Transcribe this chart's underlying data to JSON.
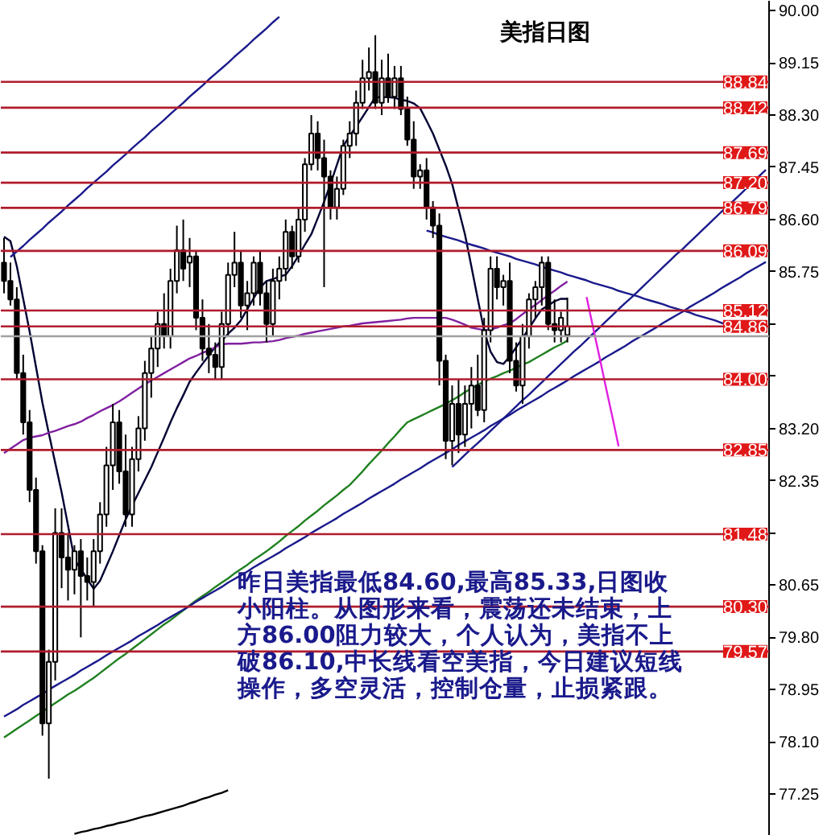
{
  "chart_data": {
    "type": "candlestick",
    "title": "美指日图",
    "categories": [
      null,
      null,
      null,
      null,
      null,
      null,
      null,
      null,
      null,
      null,
      null,
      null,
      null,
      null,
      null,
      null,
      null,
      null,
      null,
      null,
      null,
      null,
      null,
      null,
      null,
      null,
      null,
      null,
      null,
      null,
      null,
      null,
      null,
      null,
      null,
      null,
      null,
      null,
      null,
      null,
      null,
      null,
      null,
      null,
      null,
      null,
      null,
      null,
      null,
      null,
      null,
      null,
      null,
      null,
      null,
      null,
      null,
      null,
      null,
      null,
      null,
      null,
      null,
      null,
      null,
      null,
      null,
      null,
      null,
      null,
      null,
      null,
      null,
      null,
      null,
      null,
      null,
      null,
      null,
      null,
      null,
      null,
      null,
      null,
      null,
      null,
      null,
      null,
      null,
      null,
      null,
      null,
      null,
      null,
      null,
      null,
      null,
      null,
      null,
      null,
      null,
      null,
      null,
      null,
      null,
      null,
      null,
      null,
      null,
      null,
      null,
      null,
      null,
      null,
      null,
      null,
      null,
      null,
      null,
      null
    ],
    "ohlc": [
      [
        85.9,
        86.3,
        85.4,
        85.6
      ],
      [
        85.6,
        85.9,
        85.2,
        85.3
      ],
      [
        85.3,
        85.5,
        84.0,
        84.1
      ],
      [
        84.1,
        84.4,
        83.1,
        83.3
      ],
      [
        83.3,
        83.5,
        82.0,
        82.2
      ],
      [
        82.2,
        82.4,
        81.0,
        81.2
      ],
      [
        81.2,
        81.3,
        78.2,
        78.4
      ],
      [
        78.4,
        79.6,
        77.5,
        79.4
      ],
      [
        79.4,
        81.9,
        79.1,
        81.5
      ],
      [
        81.5,
        81.9,
        80.6,
        81.1
      ],
      [
        81.1,
        81.5,
        80.4,
        80.9
      ],
      [
        80.9,
        81.3,
        80.5,
        81.2
      ],
      [
        81.2,
        81.4,
        79.8,
        80.8
      ],
      [
        80.8,
        81.1,
        80.4,
        80.7
      ],
      [
        80.7,
        81.4,
        80.3,
        81.2
      ],
      [
        81.2,
        82.0,
        81.0,
        81.8
      ],
      [
        81.8,
        82.9,
        81.6,
        82.6
      ],
      [
        82.6,
        83.6,
        82.2,
        83.3
      ],
      [
        83.3,
        83.5,
        82.3,
        82.5
      ],
      [
        82.5,
        83.1,
        81.6,
        81.8
      ],
      [
        81.8,
        82.9,
        81.6,
        82.7
      ],
      [
        82.7,
        83.4,
        82.5,
        83.2
      ],
      [
        83.2,
        84.3,
        83.0,
        84.1
      ],
      [
        84.1,
        84.7,
        83.7,
        84.5
      ],
      [
        84.5,
        85.1,
        84.2,
        84.9
      ],
      [
        84.9,
        85.4,
        84.5,
        84.7
      ],
      [
        84.7,
        85.8,
        84.5,
        85.6
      ],
      [
        85.6,
        86.5,
        85.4,
        86.1
      ],
      [
        86.1,
        86.6,
        85.6,
        85.8
      ],
      [
        85.9,
        86.3,
        85.5,
        86.0
      ],
      [
        86.0,
        86.1,
        84.8,
        85.0
      ],
      [
        85.0,
        85.3,
        84.3,
        84.5
      ],
      [
        84.5,
        84.9,
        84.1,
        84.4
      ],
      [
        84.4,
        84.6,
        84.0,
        84.2
      ],
      [
        84.2,
        85.1,
        84.0,
        84.9
      ],
      [
        84.9,
        85.9,
        84.7,
        85.7
      ],
      [
        85.7,
        86.4,
        85.5,
        85.9
      ],
      [
        85.9,
        86.1,
        85.0,
        85.2
      ],
      [
        85.2,
        85.6,
        84.8,
        85.4
      ],
      [
        85.4,
        86.0,
        85.2,
        85.9
      ],
      [
        85.9,
        86.1,
        85.2,
        85.4
      ],
      [
        85.4,
        85.6,
        84.6,
        84.9
      ],
      [
        84.9,
        85.8,
        84.7,
        85.6
      ],
      [
        85.6,
        86.0,
        85.3,
        85.8
      ],
      [
        85.8,
        86.6,
        85.6,
        86.4
      ],
      [
        86.4,
        86.5,
        85.8,
        86.0
      ],
      [
        86.0,
        86.8,
        85.9,
        86.6
      ],
      [
        86.6,
        87.6,
        86.4,
        87.5
      ],
      [
        87.5,
        88.3,
        87.4,
        88.0
      ],
      [
        88.0,
        88.2,
        87.4,
        87.6
      ],
      [
        87.6,
        87.9,
        85.5,
        87.3
      ],
      [
        87.3,
        87.4,
        86.6,
        86.8
      ],
      [
        86.8,
        87.3,
        86.6,
        87.1
      ],
      [
        87.1,
        87.9,
        87.0,
        87.8
      ],
      [
        87.8,
        88.2,
        87.6,
        88.0
      ],
      [
        88.0,
        88.7,
        87.8,
        88.5
      ],
      [
        88.5,
        89.2,
        88.4,
        88.9
      ],
      [
        88.9,
        89.4,
        88.7,
        89.0
      ],
      [
        89.0,
        89.6,
        88.4,
        88.5
      ],
      [
        88.5,
        89.2,
        88.3,
        88.9
      ],
      [
        88.9,
        89.3,
        88.5,
        88.6
      ],
      [
        88.6,
        89.1,
        88.4,
        88.9
      ],
      [
        88.9,
        89.1,
        88.3,
        88.4
      ],
      [
        88.4,
        88.6,
        87.8,
        87.9
      ],
      [
        87.9,
        88.2,
        87.1,
        87.3
      ],
      [
        87.3,
        87.5,
        87.1,
        87.4
      ],
      [
        87.4,
        87.6,
        86.6,
        86.8
      ],
      [
        86.8,
        86.9,
        86.3,
        86.5
      ],
      [
        86.5,
        86.7,
        83.9,
        84.3
      ],
      [
        84.3,
        84.4,
        82.7,
        83.0
      ],
      [
        83.0,
        83.9,
        82.6,
        83.6
      ],
      [
        83.6,
        84.0,
        82.8,
        83.1
      ],
      [
        83.1,
        83.9,
        82.9,
        83.6
      ],
      [
        83.6,
        84.2,
        83.2,
        83.9
      ],
      [
        83.9,
        84.4,
        83.4,
        83.5
      ],
      [
        83.5,
        85.0,
        83.3,
        84.8
      ],
      [
        84.8,
        86.0,
        84.6,
        85.8
      ],
      [
        85.8,
        86.0,
        85.3,
        85.5
      ],
      [
        85.5,
        85.7,
        85.2,
        85.6
      ],
      [
        85.6,
        85.9,
        84.1,
        84.3
      ],
      [
        84.3,
        84.6,
        83.8,
        83.9
      ],
      [
        83.9,
        84.9,
        83.6,
        84.7
      ],
      [
        84.7,
        85.4,
        84.5,
        85.3
      ],
      [
        85.3,
        85.6,
        85.0,
        85.5
      ],
      [
        85.5,
        86.0,
        85.2,
        85.9
      ],
      [
        85.9,
        86.0,
        84.8,
        84.9
      ],
      [
        84.9,
        85.3,
        84.6,
        84.8
      ],
      [
        84.8,
        85.1,
        84.6,
        85.0
      ],
      [
        84.72,
        85.33,
        84.6,
        84.86
      ],
      null,
      null,
      null,
      null,
      null,
      null,
      null,
      null,
      null,
      null,
      null,
      null,
      null,
      null,
      null,
      null,
      null,
      null,
      null,
      null,
      null,
      null,
      null,
      null,
      null,
      null,
      null,
      null,
      null,
      null,
      null
    ],
    "ylim": [
      76.57,
      90.16
    ],
    "yticks": [
      {
        "value": 90,
        "label": "90.00"
      },
      {
        "value": 89.15,
        "label": "89.15"
      },
      {
        "value": 88.3,
        "label": "88.30"
      },
      {
        "value": 87.45,
        "label": "87.45"
      },
      {
        "value": 86.6,
        "label": "86.60"
      },
      {
        "value": 85.75,
        "label": "85.75"
      },
      {
        "value": 84.9,
        "label": null
      },
      {
        "value": 84.05,
        "label": null
      },
      {
        "value": 83.2,
        "label": "83.20"
      },
      {
        "value": 82.35,
        "label": "82.35"
      },
      {
        "value": 81.5,
        "label": null
      },
      {
        "value": 80.65,
        "label": "80.65"
      },
      {
        "value": 79.8,
        "label": "79.80"
      },
      {
        "value": 78.95,
        "label": "78.95"
      },
      {
        "value": 78.1,
        "label": "78.10"
      },
      {
        "value": 77.25,
        "label": "77.25"
      }
    ],
    "tick_labels": "y",
    "grid": false,
    "ref_lines": [
      {
        "axis": "y",
        "value": 88.84,
        "label": "88.84",
        "color": "#b01c2c"
      },
      {
        "axis": "y",
        "value": 88.42,
        "label": "88.42",
        "color": "#b01c2c"
      },
      {
        "axis": "y",
        "value": 87.69,
        "label": "87.69",
        "color": "#b01c2c"
      },
      {
        "axis": "y",
        "value": 87.2,
        "label": "87.20",
        "color": "#b01c2c"
      },
      {
        "axis": "y",
        "value": 86.79,
        "label": "86.79",
        "color": "#b01c2c"
      },
      {
        "axis": "y",
        "value": 86.09,
        "label": "86.09",
        "color": "#b01c2c"
      },
      {
        "axis": "y",
        "value": 85.12,
        "label": "85.12",
        "color": "#b01c2c"
      },
      {
        "axis": "y",
        "value": 84.86,
        "label": "84.86",
        "color": "#b01c2c"
      },
      {
        "axis": "y",
        "value": 84.7,
        "color": "#a0a0a0"
      },
      {
        "axis": "y",
        "value": 84.0,
        "label": "84.00",
        "color": "#b01c2c"
      },
      {
        "axis": "y",
        "value": 82.85,
        "label": "82.85",
        "color": "#b01c2c"
      },
      {
        "axis": "y",
        "value": 81.48,
        "label": "81.48",
        "color": "#b01c2c"
      },
      {
        "axis": "y",
        "value": 80.3,
        "label": "80.30",
        "color": "#b01c2c"
      },
      {
        "axis": "y",
        "value": 79.57,
        "label": "79.57",
        "color": "#b01c2c"
      }
    ],
    "series": [
      {
        "type": "line",
        "color": "#000033",
        "values": [
          86.32,
          86.25,
          85.84,
          85.31,
          84.78,
          84.2,
          83.62,
          83.12,
          82.64,
          82.16,
          81.62,
          81.07,
          80.91,
          80.75,
          80.59,
          80.72,
          80.96,
          81.2,
          81.46,
          81.72,
          81.94,
          82.15,
          82.36,
          82.57,
          82.81,
          83.05,
          83.3,
          83.53,
          83.74,
          83.96,
          84.11,
          84.25,
          84.39,
          84.53,
          84.63,
          84.74,
          84.84,
          84.96,
          85.14,
          85.32,
          85.49,
          85.6,
          85.63,
          85.67,
          85.7,
          85.84,
          86.01,
          86.19,
          86.36,
          86.62,
          86.89,
          87.18,
          87.49,
          87.8,
          87.96,
          88.11,
          88.27,
          88.43,
          88.59,
          88.59,
          88.59,
          88.58,
          88.55,
          88.53,
          88.49,
          88.41,
          88.21,
          88.0,
          87.74,
          87.48,
          87.18,
          86.77,
          86.36,
          85.84,
          85.31,
          84.79,
          84.45,
          84.28,
          84.25,
          84.37,
          84.52,
          84.67,
          84.83,
          84.99,
          85.14,
          85.2,
          85.27,
          85.31,
          85.31,
          null,
          null,
          null,
          null,
          null,
          null,
          null,
          null,
          null,
          null,
          null,
          null,
          null,
          null,
          null,
          null,
          null,
          null,
          null,
          null,
          null,
          null,
          null,
          null,
          null,
          null,
          null,
          null,
          null,
          null,
          null
        ]
      },
      {
        "type": "line",
        "color": "#8020a0",
        "values": [
          82.8,
          82.87,
          82.94,
          83.01,
          83.05,
          83.07,
          83.09,
          83.13,
          83.16,
          83.2,
          83.24,
          83.27,
          83.31,
          83.37,
          83.42,
          83.48,
          83.53,
          83.58,
          83.64,
          83.71,
          83.78,
          83.85,
          83.92,
          83.98,
          84.04,
          84.1,
          84.16,
          84.22,
          84.28,
          84.34,
          84.38,
          84.43,
          84.47,
          84.52,
          84.57,
          84.58,
          84.58,
          84.58,
          84.59,
          84.6,
          84.6,
          84.61,
          84.62,
          84.64,
          84.67,
          84.69,
          84.71,
          84.74,
          84.76,
          84.78,
          84.8,
          84.82,
          84.84,
          84.86,
          84.87,
          84.89,
          84.91,
          84.92,
          84.93,
          84.94,
          84.95,
          84.96,
          84.97,
          84.99,
          85.0,
          85.0,
          85.0,
          85.0,
          85.0,
          85.0,
          84.97,
          84.93,
          84.89,
          84.84,
          84.82,
          84.8,
          84.81,
          84.84,
          84.88,
          84.91,
          84.98,
          85.06,
          85.14,
          85.21,
          85.29,
          85.37,
          85.44,
          85.52,
          85.59,
          null,
          null,
          null,
          null,
          null,
          null,
          null,
          null,
          null,
          null,
          null,
          null,
          null,
          null,
          null,
          null,
          null,
          null,
          null,
          null,
          null,
          null,
          null,
          null,
          null,
          null,
          null,
          null,
          null,
          null,
          null
        ]
      },
      {
        "type": "line",
        "color": "#208020",
        "values": [
          78.17,
          78.24,
          78.31,
          78.38,
          78.45,
          78.52,
          78.59,
          78.66,
          78.73,
          78.8,
          78.87,
          78.93,
          79.0,
          79.07,
          79.14,
          79.22,
          79.3,
          79.38,
          79.46,
          79.53,
          79.61,
          79.69,
          79.77,
          79.85,
          79.93,
          80.01,
          80.08,
          80.16,
          80.24,
          80.32,
          80.4,
          80.47,
          80.54,
          80.62,
          80.69,
          80.76,
          80.84,
          80.91,
          80.98,
          81.06,
          81.13,
          81.2,
          81.28,
          81.36,
          81.45,
          81.53,
          81.61,
          81.7,
          81.78,
          81.86,
          81.95,
          82.03,
          82.11,
          82.2,
          82.28,
          82.39,
          82.5,
          82.62,
          82.73,
          82.84,
          82.96,
          83.07,
          83.19,
          83.3,
          83.35,
          83.4,
          83.45,
          83.5,
          83.55,
          83.6,
          83.66,
          83.72,
          83.79,
          83.85,
          83.91,
          83.96,
          84.01,
          84.05,
          84.1,
          84.14,
          84.19,
          84.24,
          84.28,
          84.34,
          84.4,
          84.46,
          84.52,
          84.57,
          84.63,
          null,
          null,
          null,
          null,
          null,
          null,
          null,
          null,
          null,
          null,
          null,
          null,
          null,
          null,
          null,
          null,
          null,
          null,
          null,
          null,
          null,
          null,
          null,
          null,
          null,
          null,
          null,
          null,
          null,
          null,
          null
        ]
      },
      {
        "type": "line",
        "color": "#1a1a8c",
        "values": [
          null,
          85.99,
          86.08,
          86.17,
          86.27,
          86.36,
          86.45,
          86.55,
          86.64,
          86.73,
          86.83,
          86.92,
          87.01,
          87.11,
          87.2,
          87.29,
          87.38,
          87.48,
          87.57,
          87.66,
          87.76,
          87.85,
          87.94,
          88.04,
          88.13,
          88.22,
          88.32,
          88.41,
          88.5,
          88.6,
          88.69,
          88.78,
          88.88,
          88.97,
          89.06,
          89.15,
          89.25,
          89.34,
          89.43,
          89.53,
          89.62,
          89.71,
          89.81,
          89.9,
          null,
          null,
          null,
          null,
          null,
          null,
          null,
          null,
          null,
          null,
          null,
          null,
          null,
          null,
          null,
          null,
          null,
          null,
          null,
          null,
          null,
          null,
          null,
          null,
          null,
          null,
          null,
          null,
          null,
          null,
          null,
          null,
          null,
          null,
          null,
          null,
          null,
          null,
          null,
          null,
          null,
          null,
          null,
          null,
          null,
          null,
          null,
          null,
          null,
          null,
          null,
          null,
          null,
          null,
          null,
          null,
          null,
          null,
          null,
          null,
          null,
          null,
          null,
          null,
          null,
          null,
          null,
          null,
          null,
          null,
          null,
          null,
          null,
          null,
          null,
          null
        ]
      },
      {
        "type": "line",
        "color": "#1a1a8c",
        "values": [
          null,
          null,
          null,
          null,
          null,
          null,
          null,
          null,
          null,
          null,
          null,
          null,
          null,
          null,
          null,
          null,
          null,
          null,
          null,
          null,
          null,
          null,
          null,
          null,
          null,
          null,
          null,
          null,
          null,
          null,
          null,
          null,
          null,
          null,
          null,
          null,
          null,
          null,
          null,
          null,
          null,
          null,
          null,
          null,
          null,
          null,
          null,
          null,
          null,
          null,
          null,
          null,
          null,
          null,
          null,
          null,
          null,
          null,
          null,
          null,
          null,
          null,
          null,
          null,
          null,
          null,
          null,
          null,
          null,
          null,
          82.57,
          82.67,
          82.77,
          82.87,
          82.96,
          83.06,
          83.16,
          83.26,
          83.36,
          83.46,
          83.56,
          83.66,
          83.75,
          83.85,
          83.95,
          84.05,
          84.15,
          84.25,
          84.35,
          84.45,
          84.54,
          84.64,
          84.74,
          84.84,
          84.94,
          85.04,
          85.14,
          85.24,
          85.33,
          85.43,
          85.53,
          85.63,
          85.73,
          85.83,
          85.93,
          86.03,
          86.12,
          86.22,
          86.32,
          86.42,
          86.52,
          86.62,
          86.72,
          86.81,
          86.91,
          87.01,
          87.11,
          87.21,
          87.31,
          87.41
        ]
      },
      {
        "type": "line",
        "color": "#1a1a8c",
        "values": [
          78.51,
          78.57,
          78.63,
          78.7,
          78.76,
          78.82,
          78.88,
          78.95,
          79.01,
          79.07,
          79.13,
          79.19,
          79.26,
          79.32,
          79.38,
          79.44,
          79.51,
          79.57,
          79.63,
          79.69,
          79.75,
          79.82,
          79.88,
          79.94,
          80.0,
          80.07,
          80.13,
          80.19,
          80.25,
          80.31,
          80.38,
          80.44,
          80.5,
          80.56,
          80.62,
          80.69,
          80.75,
          80.81,
          80.87,
          80.94,
          81.0,
          81.06,
          81.12,
          81.18,
          81.25,
          81.31,
          81.37,
          81.43,
          81.5,
          81.56,
          81.62,
          81.68,
          81.74,
          81.81,
          81.87,
          81.93,
          81.99,
          82.06,
          82.12,
          82.18,
          82.24,
          82.3,
          82.37,
          82.43,
          82.49,
          82.55,
          82.62,
          82.68,
          82.74,
          82.8,
          82.86,
          82.93,
          82.99,
          83.05,
          83.11,
          83.17,
          83.24,
          83.3,
          83.36,
          83.42,
          83.49,
          83.55,
          83.61,
          83.67,
          83.73,
          83.8,
          83.86,
          83.92,
          83.98,
          84.05,
          84.11,
          84.17,
          84.23,
          84.29,
          84.36,
          84.42,
          84.48,
          84.54,
          84.61,
          84.67,
          84.73,
          84.79,
          84.85,
          84.92,
          84.98,
          85.04,
          85.1,
          85.17,
          85.23,
          85.29,
          85.35,
          85.41,
          85.48,
          85.54,
          85.6,
          85.66,
          85.73,
          85.79,
          85.85,
          85.91
        ]
      },
      {
        "type": "line",
        "color": "#1a1a8c",
        "values": [
          null,
          null,
          null,
          null,
          null,
          null,
          null,
          null,
          null,
          null,
          null,
          null,
          null,
          null,
          null,
          null,
          null,
          null,
          null,
          null,
          null,
          null,
          null,
          null,
          null,
          null,
          null,
          null,
          null,
          null,
          null,
          null,
          null,
          null,
          null,
          null,
          null,
          null,
          null,
          null,
          null,
          null,
          null,
          null,
          null,
          null,
          null,
          null,
          null,
          null,
          null,
          null,
          null,
          null,
          null,
          null,
          null,
          null,
          null,
          null,
          null,
          null,
          null,
          null,
          null,
          null,
          86.42,
          86.39,
          86.35,
          86.32,
          86.29,
          86.26,
          86.22,
          86.19,
          86.16,
          86.13,
          86.09,
          86.06,
          86.03,
          86.0,
          85.96,
          85.93,
          85.9,
          85.87,
          85.83,
          85.8,
          85.77,
          85.74,
          85.7,
          85.67,
          85.64,
          85.61,
          85.57,
          85.54,
          85.51,
          85.48,
          85.44,
          85.41,
          85.38,
          85.35,
          85.31,
          85.28,
          85.25,
          85.22,
          85.18,
          85.15,
          85.12,
          85.09,
          85.05,
          85.02,
          84.99,
          84.96,
          84.92,
          84.89,
          null,
          null,
          null,
          null,
          null,
          null
        ]
      },
      {
        "type": "line",
        "color": "#e020e0",
        "values": [
          null,
          null,
          null,
          null,
          null,
          null,
          null,
          null,
          null,
          null,
          null,
          null,
          null,
          null,
          null,
          null,
          null,
          null,
          null,
          null,
          null,
          null,
          null,
          null,
          null,
          null,
          null,
          null,
          null,
          null,
          null,
          null,
          null,
          null,
          null,
          null,
          null,
          null,
          null,
          null,
          null,
          null,
          null,
          null,
          null,
          null,
          null,
          null,
          null,
          null,
          null,
          null,
          null,
          null,
          null,
          null,
          null,
          null,
          null,
          null,
          null,
          null,
          null,
          null,
          null,
          null,
          null,
          null,
          null,
          null,
          null,
          null,
          null,
          null,
          null,
          null,
          null,
          null,
          null,
          null,
          null,
          null,
          null,
          null,
          null,
          null,
          null,
          null,
          null,
          null,
          null,
          85.34,
          84.85,
          84.37,
          83.88,
          83.4,
          82.91,
          null,
          null,
          null,
          null,
          null,
          null,
          null,
          null,
          null,
          null,
          null,
          null,
          null,
          null,
          null,
          null,
          null,
          null,
          null,
          null,
          null,
          null,
          null
        ]
      },
      {
        "type": "line",
        "color": "#000000",
        "values": [
          null,
          null,
          null,
          null,
          null,
          null,
          null,
          null,
          null,
          null,
          null,
          76.6,
          76.63,
          76.65,
          76.68,
          76.7,
          76.73,
          76.75,
          76.78,
          76.8,
          76.83,
          76.86,
          76.89,
          76.91,
          76.94,
          76.97,
          77.0,
          77.03,
          77.06,
          77.1,
          77.13,
          77.17,
          77.2,
          77.24,
          77.27,
          77.31,
          null,
          null,
          null,
          null,
          null,
          null,
          null,
          null,
          null,
          null,
          null,
          null,
          null,
          null,
          null,
          null,
          null,
          null,
          null,
          null,
          null,
          null,
          null,
          null,
          null,
          null,
          null,
          null,
          null,
          null,
          null,
          null,
          null,
          null,
          null,
          null,
          null,
          null,
          null,
          null,
          null,
          null,
          null,
          null,
          null,
          null,
          null,
          null,
          null,
          null,
          null,
          null,
          null,
          null,
          null,
          null,
          null,
          null,
          null,
          null,
          null,
          null,
          null,
          null,
          null,
          null,
          null,
          null,
          null,
          null,
          null,
          null,
          null,
          null,
          null,
          null,
          null,
          null,
          null,
          null,
          null,
          null,
          null,
          null
        ]
      }
    ],
    "annotations": [
      "昨日美指最低84.60,最高85.33,日图收",
      "小阳柱。从图形来看，震荡还未结束，上",
      "方86.00阻力较大，个人认为，美指不上",
      "破86.10,中长线看空美指，今日建议短线",
      "操作，多空灵活，控制仓量，止损紧跟。"
    ]
  }
}
